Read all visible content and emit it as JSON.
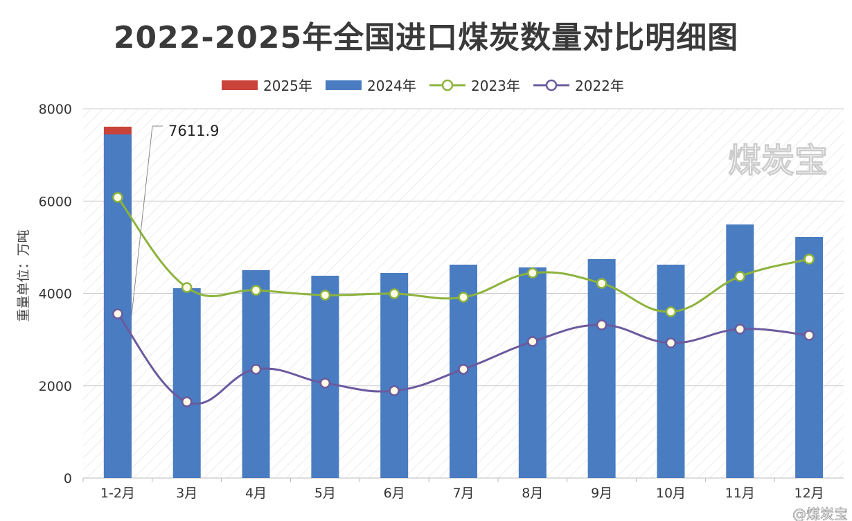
{
  "chart_data": {
    "type": "bar",
    "title": "2022-2025年全国进口煤炭数量对比明细图",
    "ylabel": "重量单位：万吨",
    "xlabel": "",
    "ylim": [
      0,
      8000
    ],
    "yticks": [
      0,
      2000,
      4000,
      6000,
      8000
    ],
    "grid": true,
    "legend": "top",
    "categories": [
      "1-2月",
      "3月",
      "4月",
      "5月",
      "6月",
      "7月",
      "8月",
      "9月",
      "10月",
      "11月",
      "12月"
    ],
    "series": [
      {
        "name": "2025年",
        "kind": "bar",
        "color": "#c9433b",
        "values": [
          7611.9,
          null,
          null,
          null,
          null,
          null,
          null,
          null,
          null,
          null,
          null
        ]
      },
      {
        "name": "2024年",
        "kind": "bar",
        "color": "#4a7cc1",
        "values": [
          7445,
          4113,
          4503,
          4383,
          4443,
          4623,
          4563,
          4743,
          4623,
          5494,
          5223
        ]
      },
      {
        "name": "2023年",
        "kind": "line",
        "color": "#8db33c",
        "values": [
          6080,
          4128,
          4068,
          3963,
          3993,
          3918,
          4443,
          4218,
          3603,
          4368,
          4743
        ]
      },
      {
        "name": "2022年",
        "kind": "line",
        "color": "#6b5a9e",
        "values": [
          3557,
          1651,
          2357,
          2057,
          1891,
          2357,
          2957,
          3317,
          2927,
          3227,
          3092
        ]
      }
    ],
    "annotations": [
      "7611.9"
    ]
  },
  "watermark": "煤炭宝",
  "credit": "@煤炭宝"
}
